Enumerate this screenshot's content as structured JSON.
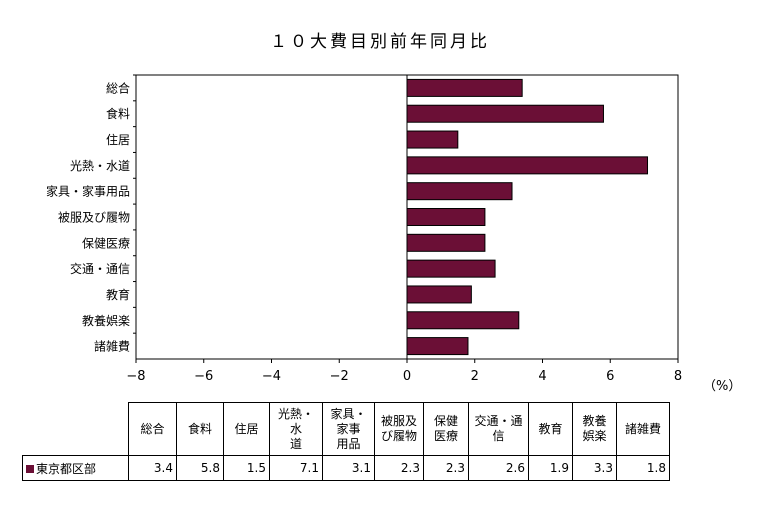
{
  "chart_data": {
    "type": "bar",
    "orientation": "horizontal",
    "title": "１０大費目別前年同月比",
    "categories": [
      "総合",
      "食料",
      "住居",
      "光熱・水道",
      "家具・家事用品",
      "被服及び履物",
      "保健医療",
      "交通・通信",
      "教育",
      "教養娯楽",
      "諸雑費"
    ],
    "series": [
      {
        "name": "東京都区部",
        "values": [
          3.4,
          5.8,
          1.5,
          7.1,
          3.1,
          2.3,
          2.3,
          2.6,
          1.9,
          3.3,
          1.8
        ]
      }
    ],
    "xlim": [
      -8,
      8
    ],
    "xticks": [
      "−8",
      "−6",
      "−4",
      "−2",
      "0",
      "2",
      "4",
      "6",
      "8"
    ],
    "unit": "（%）",
    "bar_color": "#6b0f36",
    "grid": false
  },
  "table": {
    "headers": [
      "総合",
      "食料",
      "住居",
      "光熱・水\n道",
      "家具・\n家事\n用品",
      "被服及\nび履物",
      "保健\n医療",
      "交通・通\n信",
      "教育",
      "教養\n娯楽",
      "諸雑費"
    ],
    "row_label": "東京都区部",
    "values": [
      "3.4",
      "5.8",
      "1.5",
      "7.1",
      "3.1",
      "2.3",
      "2.3",
      "2.6",
      "1.9",
      "3.3",
      "1.8"
    ]
  }
}
